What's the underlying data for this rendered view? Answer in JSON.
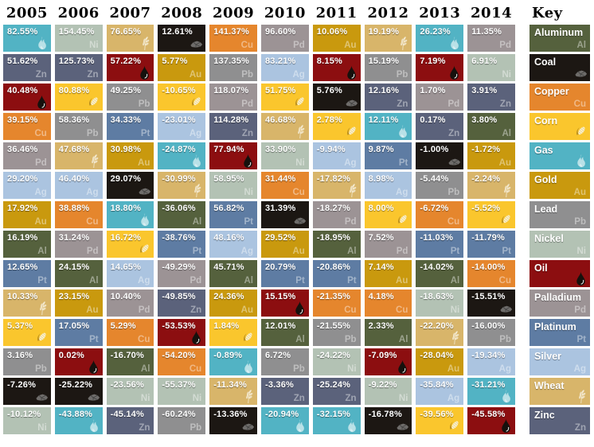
{
  "key": {
    "title": "Key"
  },
  "commodities": [
    {
      "name": "Aluminum",
      "symbol": "Al",
      "icon": "symbol",
      "color": "#55613d"
    },
    {
      "name": "Coal",
      "symbol": "",
      "icon": "coal",
      "color": "#1c1713"
    },
    {
      "name": "Copper",
      "symbol": "Cu",
      "icon": "symbol",
      "color": "#e5862d"
    },
    {
      "name": "Corn",
      "symbol": "",
      "icon": "corn",
      "color": "#fac62d"
    },
    {
      "name": "Gas",
      "symbol": "",
      "icon": "flame",
      "color": "#52b3c4"
    },
    {
      "name": "Gold",
      "symbol": "Au",
      "icon": "symbol",
      "color": "#c9990e"
    },
    {
      "name": "Lead",
      "symbol": "Pb",
      "icon": "symbol",
      "color": "#8f8f90"
    },
    {
      "name": "Nickel",
      "symbol": "Ni",
      "icon": "symbol",
      "color": "#b3c2b4"
    },
    {
      "name": "Oil",
      "symbol": "",
      "icon": "drop",
      "color": "#8c0e10"
    },
    {
      "name": "Palladium",
      "symbol": "Pd",
      "icon": "symbol",
      "color": "#9c9395"
    },
    {
      "name": "Platinum",
      "symbol": "Pt",
      "icon": "symbol",
      "color": "#5e7ca3"
    },
    {
      "name": "Silver",
      "symbol": "Ag",
      "icon": "symbol",
      "color": "#abc4e0"
    },
    {
      "name": "Wheat",
      "symbol": "",
      "icon": "wheat",
      "color": "#d8b56a"
    },
    {
      "name": "Zinc",
      "symbol": "Zn",
      "icon": "symbol",
      "color": "#5b627b"
    }
  ],
  "chart_data": {
    "type": "table",
    "value_format": "percent",
    "columns": [
      "2005",
      "2006",
      "2007",
      "2008",
      "2009",
      "2010",
      "2011",
      "2012",
      "2013",
      "2014"
    ],
    "rankings": {
      "2005": [
        {
          "commodity": "Gas",
          "value": 82.55
        },
        {
          "commodity": "Zinc",
          "value": 51.62
        },
        {
          "commodity": "Oil",
          "value": 40.48
        },
        {
          "commodity": "Copper",
          "value": 39.15
        },
        {
          "commodity": "Palladium",
          "value": 36.46
        },
        {
          "commodity": "Silver",
          "value": 29.2
        },
        {
          "commodity": "Gold",
          "value": 17.92
        },
        {
          "commodity": "Aluminum",
          "value": 16.19
        },
        {
          "commodity": "Platinum",
          "value": 12.65
        },
        {
          "commodity": "Wheat",
          "value": 10.33
        },
        {
          "commodity": "Corn",
          "value": 5.37
        },
        {
          "commodity": "Lead",
          "value": 3.16
        },
        {
          "commodity": "Coal",
          "value": -7.26
        },
        {
          "commodity": "Nickel",
          "value": -10.12
        }
      ],
      "2006": [
        {
          "commodity": "Nickel",
          "value": 154.45
        },
        {
          "commodity": "Zinc",
          "value": 125.73
        },
        {
          "commodity": "Corn",
          "value": 80.88
        },
        {
          "commodity": "Lead",
          "value": 58.36
        },
        {
          "commodity": "Wheat",
          "value": 47.68
        },
        {
          "commodity": "Silver",
          "value": 46.4
        },
        {
          "commodity": "Copper",
          "value": 38.88
        },
        {
          "commodity": "Palladium",
          "value": 31.24
        },
        {
          "commodity": "Aluminum",
          "value": 24.15
        },
        {
          "commodity": "Gold",
          "value": 23.15
        },
        {
          "commodity": "Platinum",
          "value": 17.05
        },
        {
          "commodity": "Oil",
          "value": 0.02
        },
        {
          "commodity": "Coal",
          "value": -25.22
        },
        {
          "commodity": "Gas",
          "value": -43.88
        }
      ],
      "2007": [
        {
          "commodity": "Wheat",
          "value": 76.65
        },
        {
          "commodity": "Oil",
          "value": 57.22
        },
        {
          "commodity": "Lead",
          "value": 49.25
        },
        {
          "commodity": "Platinum",
          "value": 34.33
        },
        {
          "commodity": "Gold",
          "value": 30.98
        },
        {
          "commodity": "Coal",
          "value": 29.07
        },
        {
          "commodity": "Gas",
          "value": 18.8
        },
        {
          "commodity": "Corn",
          "value": 16.72
        },
        {
          "commodity": "Silver",
          "value": 14.65
        },
        {
          "commodity": "Palladium",
          "value": 10.4
        },
        {
          "commodity": "Copper",
          "value": 5.29
        },
        {
          "commodity": "Aluminum",
          "value": -16.7
        },
        {
          "commodity": "Nickel",
          "value": -23.56
        },
        {
          "commodity": "Zinc",
          "value": -45.14
        }
      ],
      "2008": [
        {
          "commodity": "Coal",
          "value": 12.61
        },
        {
          "commodity": "Gold",
          "value": 5.77
        },
        {
          "commodity": "Corn",
          "value": -10.65
        },
        {
          "commodity": "Silver",
          "value": -23.01
        },
        {
          "commodity": "Gas",
          "value": -24.87
        },
        {
          "commodity": "Wheat",
          "value": -30.99
        },
        {
          "commodity": "Aluminum",
          "value": -36.06
        },
        {
          "commodity": "Platinum",
          "value": -38.76
        },
        {
          "commodity": "Palladium",
          "value": -49.29
        },
        {
          "commodity": "Zinc",
          "value": -49.85
        },
        {
          "commodity": "Oil",
          "value": -53.53
        },
        {
          "commodity": "Copper",
          "value": -54.2
        },
        {
          "commodity": "Nickel",
          "value": -55.37
        },
        {
          "commodity": "Lead",
          "value": -60.24
        }
      ],
      "2009": [
        {
          "commodity": "Copper",
          "value": 141.37
        },
        {
          "commodity": "Lead",
          "value": 137.35
        },
        {
          "commodity": "Palladium",
          "value": 118.07
        },
        {
          "commodity": "Zinc",
          "value": 114.28
        },
        {
          "commodity": "Oil",
          "value": 77.94
        },
        {
          "commodity": "Nickel",
          "value": 58.95
        },
        {
          "commodity": "Platinum",
          "value": 56.82
        },
        {
          "commodity": "Silver",
          "value": 48.16
        },
        {
          "commodity": "Aluminum",
          "value": 45.71
        },
        {
          "commodity": "Gold",
          "value": 24.36
        },
        {
          "commodity": "Corn",
          "value": 1.84
        },
        {
          "commodity": "Gas",
          "value": -0.89
        },
        {
          "commodity": "Wheat",
          "value": -11.34
        },
        {
          "commodity": "Coal",
          "value": -13.36
        }
      ],
      "2010": [
        {
          "commodity": "Palladium",
          "value": 96.6
        },
        {
          "commodity": "Silver",
          "value": 83.21
        },
        {
          "commodity": "Corn",
          "value": 51.75
        },
        {
          "commodity": "Wheat",
          "value": 46.68
        },
        {
          "commodity": "Nickel",
          "value": 33.9
        },
        {
          "commodity": "Copper",
          "value": 31.44
        },
        {
          "commodity": "Coal",
          "value": 31.39
        },
        {
          "commodity": "Gold",
          "value": 29.52
        },
        {
          "commodity": "Platinum",
          "value": 20.79
        },
        {
          "commodity": "Oil",
          "value": 15.15
        },
        {
          "commodity": "Aluminum",
          "value": 12.01
        },
        {
          "commodity": "Lead",
          "value": 6.72
        },
        {
          "commodity": "Zinc",
          "value": -3.36
        },
        {
          "commodity": "Gas",
          "value": -20.94
        }
      ],
      "2011": [
        {
          "commodity": "Gold",
          "value": 10.06
        },
        {
          "commodity": "Oil",
          "value": 8.15
        },
        {
          "commodity": "Coal",
          "value": 5.76
        },
        {
          "commodity": "Corn",
          "value": 2.78
        },
        {
          "commodity": "Silver",
          "value": -9.94
        },
        {
          "commodity": "Wheat",
          "value": -17.82
        },
        {
          "commodity": "Palladium",
          "value": -18.27
        },
        {
          "commodity": "Aluminum",
          "value": -18.95
        },
        {
          "commodity": "Platinum",
          "value": -20.86
        },
        {
          "commodity": "Copper",
          "value": -21.35
        },
        {
          "commodity": "Lead",
          "value": -21.55
        },
        {
          "commodity": "Nickel",
          "value": -24.22
        },
        {
          "commodity": "Zinc",
          "value": -25.24
        },
        {
          "commodity": "Gas",
          "value": -32.15
        }
      ],
      "2012": [
        {
          "commodity": "Wheat",
          "value": 19.19
        },
        {
          "commodity": "Lead",
          "value": 15.19
        },
        {
          "commodity": "Zinc",
          "value": 12.16
        },
        {
          "commodity": "Gas",
          "value": 12.11
        },
        {
          "commodity": "Platinum",
          "value": 9.87
        },
        {
          "commodity": "Silver",
          "value": 8.98
        },
        {
          "commodity": "Corn",
          "value": 8.0
        },
        {
          "commodity": "Palladium",
          "value": 7.52
        },
        {
          "commodity": "Gold",
          "value": 7.14
        },
        {
          "commodity": "Copper",
          "value": 4.18
        },
        {
          "commodity": "Aluminum",
          "value": 2.33
        },
        {
          "commodity": "Oil",
          "value": -7.09
        },
        {
          "commodity": "Nickel",
          "value": -9.22
        },
        {
          "commodity": "Coal",
          "value": -16.78
        }
      ],
      "2013": [
        {
          "commodity": "Gas",
          "value": 26.23
        },
        {
          "commodity": "Oil",
          "value": 7.19
        },
        {
          "commodity": "Palladium",
          "value": 1.7
        },
        {
          "commodity": "Zinc",
          "value": 0.17
        },
        {
          "commodity": "Coal",
          "value": -1.0
        },
        {
          "commodity": "Lead",
          "value": -5.44
        },
        {
          "commodity": "Copper",
          "value": -6.72
        },
        {
          "commodity": "Platinum",
          "value": -11.03
        },
        {
          "commodity": "Aluminum",
          "value": -14.02
        },
        {
          "commodity": "Nickel",
          "value": -18.63
        },
        {
          "commodity": "Wheat",
          "value": -22.2
        },
        {
          "commodity": "Gold",
          "value": -28.04
        },
        {
          "commodity": "Silver",
          "value": -35.84
        },
        {
          "commodity": "Corn",
          "value": -39.56
        }
      ],
      "2014": [
        {
          "commodity": "Palladium",
          "value": 11.35
        },
        {
          "commodity": "Nickel",
          "value": 6.91
        },
        {
          "commodity": "Zinc",
          "value": 3.91
        },
        {
          "commodity": "Aluminum",
          "value": 3.8
        },
        {
          "commodity": "Gold",
          "value": -1.72
        },
        {
          "commodity": "Wheat",
          "value": -2.24
        },
        {
          "commodity": "Corn",
          "value": -5.52
        },
        {
          "commodity": "Platinum",
          "value": -11.79
        },
        {
          "commodity": "Copper",
          "value": -14.0
        },
        {
          "commodity": "Coal",
          "value": -15.51
        },
        {
          "commodity": "Lead",
          "value": -16.0
        },
        {
          "commodity": "Silver",
          "value": -19.34
        },
        {
          "commodity": "Gas",
          "value": -31.21
        },
        {
          "commodity": "Oil",
          "value": -45.58
        }
      ]
    }
  }
}
